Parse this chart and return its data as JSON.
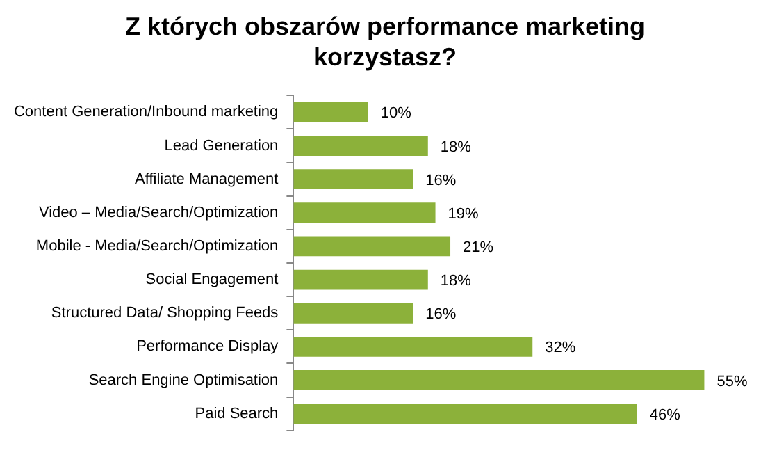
{
  "chart_data": {
    "type": "bar",
    "orientation": "horizontal",
    "title": "Z których obszarów performance marketing korzystasz?",
    "categories": [
      "Content Generation/Inbound marketing",
      "Lead Generation",
      "Affiliate Management",
      "Video – Media/Search/Optimization",
      "Mobile - Media/Search/Optimization",
      "Social Engagement",
      "Structured Data/ Shopping Feeds",
      "Performance Display",
      "Search Engine Optimisation",
      "Paid Search"
    ],
    "values": [
      10,
      18,
      16,
      19,
      21,
      18,
      16,
      32,
      55,
      46
    ],
    "value_labels": [
      "10%",
      "18%",
      "16%",
      "19%",
      "21%",
      "18%",
      "16%",
      "32%",
      "55%",
      "46%"
    ],
    "color": "#8cb13a",
    "tick_labels": "y"
  }
}
